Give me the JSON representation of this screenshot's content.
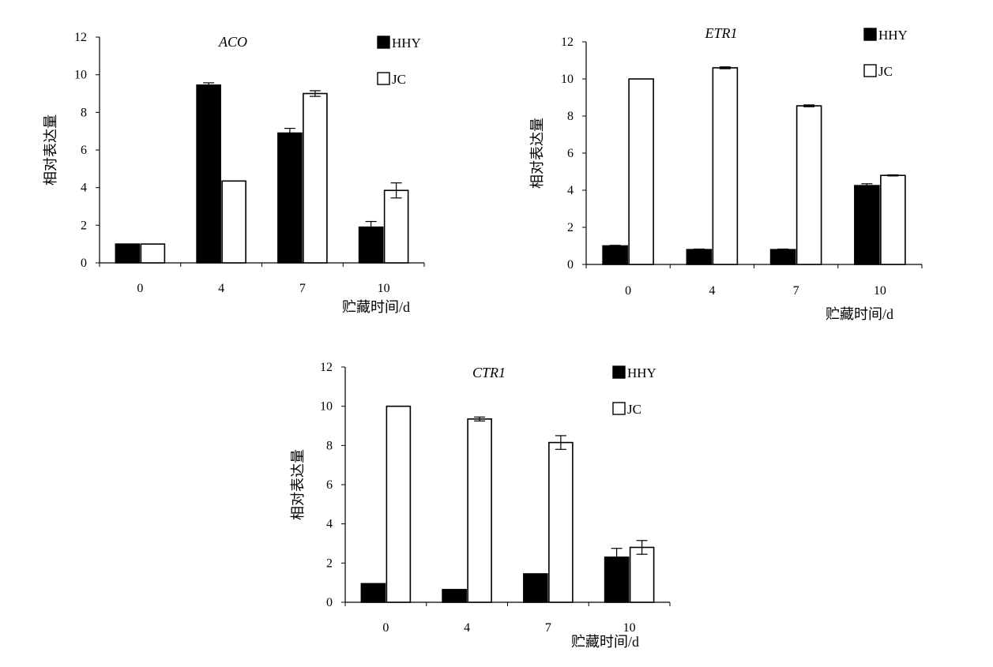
{
  "legend_labels": [
    "HHY",
    "JC"
  ],
  "colors": {
    "HHY": "#000000",
    "JC": "#ffffff",
    "stroke": "#000000"
  },
  "chart_data": [
    {
      "type": "bar",
      "title": "ACO",
      "xlabel": "贮藏时间/d",
      "ylabel": "相对表达量",
      "categories": [
        "0",
        "4",
        "7",
        "10"
      ],
      "ylim": [
        0,
        12
      ],
      "yticks": [
        "0",
        "2",
        "4",
        "6",
        "8",
        "10",
        "12"
      ],
      "legend_position": "top-right",
      "grid": false,
      "series": [
        {
          "name": "HHY",
          "values": [
            1.0,
            9.45,
            6.9,
            1.9
          ],
          "errors": [
            0.0,
            0.12,
            0.25,
            0.3
          ]
        },
        {
          "name": "JC",
          "values": [
            1.0,
            4.35,
            9.0,
            3.85
          ],
          "errors": [
            0.0,
            0.0,
            0.15,
            0.4
          ]
        }
      ]
    },
    {
      "type": "bar",
      "title": "ETR1",
      "xlabel": "贮藏时间/d",
      "ylabel": "相对表达量",
      "categories": [
        "0",
        "4",
        "7",
        "10"
      ],
      "ylim": [
        0,
        12
      ],
      "yticks": [
        "0",
        "2",
        "4",
        "6",
        "8",
        "10",
        "12"
      ],
      "legend_position": "top-right",
      "grid": false,
      "series": [
        {
          "name": "HHY",
          "values": [
            1.0,
            0.8,
            0.8,
            4.25
          ],
          "errors": [
            0.03,
            0.03,
            0.03,
            0.1
          ]
        },
        {
          "name": "JC",
          "values": [
            10.0,
            10.6,
            8.55,
            4.8
          ],
          "errors": [
            0.0,
            0.05,
            0.05,
            0.03
          ]
        }
      ]
    },
    {
      "type": "bar",
      "title": "CTR1",
      "xlabel": "贮藏时间/d",
      "ylabel": "相对表达量",
      "categories": [
        "0",
        "4",
        "7",
        "10"
      ],
      "ylim": [
        0,
        12
      ],
      "yticks": [
        "0",
        "2",
        "4",
        "6",
        "8",
        "10",
        "12"
      ],
      "legend_position": "top-right",
      "grid": false,
      "series": [
        {
          "name": "HHY",
          "values": [
            0.95,
            0.65,
            1.45,
            2.3
          ],
          "errors": [
            0.0,
            0.0,
            0.0,
            0.45
          ]
        },
        {
          "name": "JC",
          "values": [
            10.0,
            9.35,
            8.15,
            2.8
          ],
          "errors": [
            0.0,
            0.1,
            0.35,
            0.35
          ]
        }
      ]
    }
  ]
}
